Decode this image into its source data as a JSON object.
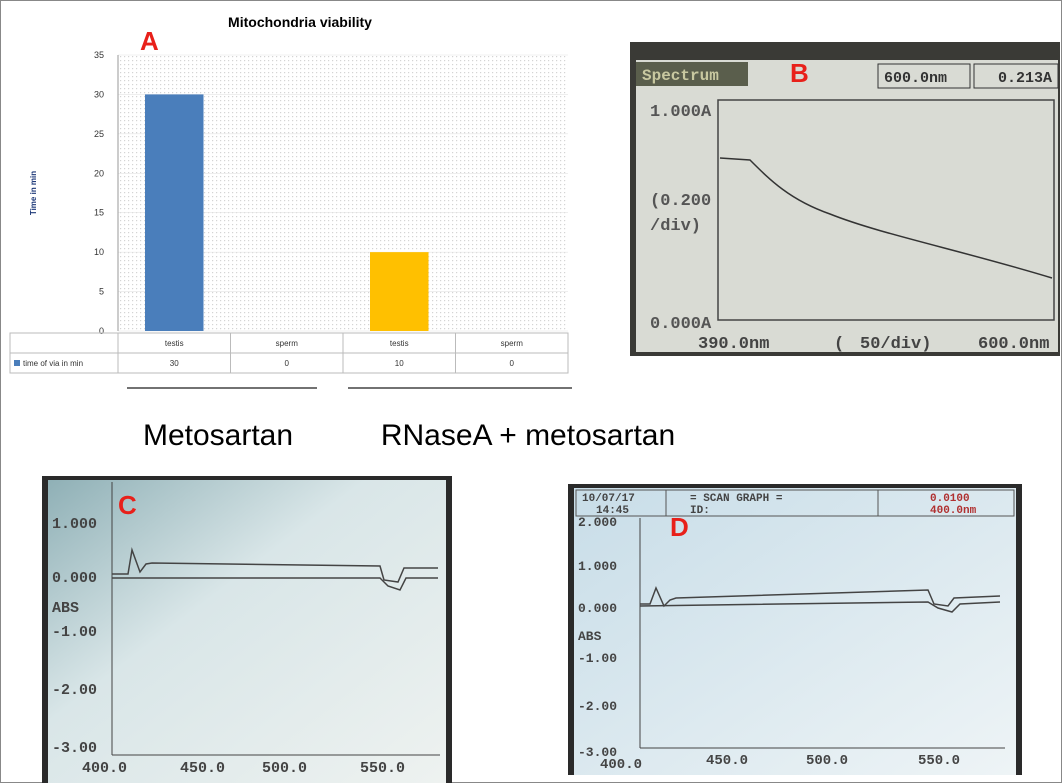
{
  "chart_data": {
    "type": "bar",
    "title": "Mitochondria viability",
    "y_label": "Time in min",
    "categories": [
      "testis",
      "sperm",
      "testis",
      "sperm"
    ],
    "values": [
      30,
      0,
      10,
      0
    ],
    "colors": [
      "#4a7ebb",
      "#4a7ebb",
      "#ffc000",
      "#ffc000"
    ],
    "table_row_label": "time of via in min",
    "ylim": [
      0,
      35
    ],
    "yticks": [
      0,
      5,
      10,
      15,
      20,
      25,
      30,
      35
    ],
    "grid": true
  },
  "panel_letters": [
    "A",
    "B",
    "C",
    "D"
  ],
  "group_labels": [
    "Metosartan",
    "RNaseA + metosartan"
  ],
  "panel_b": {
    "header": [
      "Spectrum",
      "600.0nm",
      "0.213A"
    ],
    "y_labels": [
      "1.000A",
      "(0.200",
      "/div)",
      "0.000A"
    ],
    "x_labels": [
      "390.0nm",
      "(",
      "50/div)",
      "600.0nm"
    ]
  },
  "panel_c": {
    "y_labels": [
      "1.000",
      "0.000",
      "ABS",
      "-1.00",
      "-2.00",
      "-3.00"
    ],
    "x_labels": [
      "400.0",
      "450.0",
      "500.0",
      "550.0"
    ]
  },
  "panel_d": {
    "header": [
      "10/07/17",
      "14:45",
      "= SCAN GRAPH =",
      "ID:",
      "0.0100",
      "400.0nm"
    ],
    "y_labels": [
      "2.000",
      "1.000",
      "0.000",
      "ABS",
      "-1.00",
      "-2.00",
      "-3.00"
    ],
    "x_labels": [
      "400.0",
      "450.0",
      "500.0",
      "550.0"
    ]
  }
}
